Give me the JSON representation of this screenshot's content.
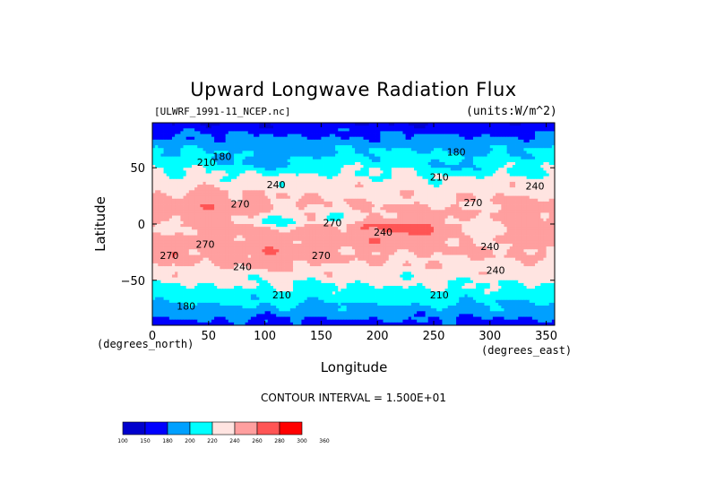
{
  "chart_data": {
    "type": "heatmap",
    "title": "Upward Longwave Radiation Flux",
    "dataset": "[ULWRF_1991-11_NCEP.nc]",
    "units": "(units:W/m^2)",
    "xlabel": "Longitude",
    "ylabel": "Latitude",
    "x_unit_label": "(degrees_east)",
    "y_unit_label": "(degrees_north)",
    "xlim": [
      0,
      357.5
    ],
    "ylim": [
      -90,
      90
    ],
    "x_ticks": [
      0,
      50,
      100,
      150,
      200,
      250,
      300,
      350
    ],
    "y_ticks": [
      50,
      0,
      -50
    ],
    "contour_interval_text": "CONTOUR INTERVAL = 1.500E+01",
    "contour_labels": [
      {
        "text": "180",
        "lon": 62,
        "lat": 60
      },
      {
        "text": "210",
        "lon": 48,
        "lat": 55
      },
      {
        "text": "240",
        "lon": 110,
        "lat": 35
      },
      {
        "text": "270",
        "lon": 78,
        "lat": 18
      },
      {
        "text": "270",
        "lon": 160,
        "lat": 1
      },
      {
        "text": "240",
        "lon": 205,
        "lat": -7
      },
      {
        "text": "180",
        "lon": 270,
        "lat": 64
      },
      {
        "text": "210",
        "lon": 255,
        "lat": 42
      },
      {
        "text": "240",
        "lon": 340,
        "lat": 34
      },
      {
        "text": "270",
        "lon": 285,
        "lat": 19
      },
      {
        "text": "270",
        "lon": 15,
        "lat": -28
      },
      {
        "text": "240",
        "lon": 80,
        "lat": -38
      },
      {
        "text": "270",
        "lon": 150,
        "lat": -28
      },
      {
        "text": "240",
        "lon": 305,
        "lat": -41
      },
      {
        "text": "210",
        "lon": 115,
        "lat": -63
      },
      {
        "text": "210",
        "lon": 255,
        "lat": -63
      },
      {
        "text": "180",
        "lon": 30,
        "lat": -73
      },
      {
        "text": "270",
        "lon": 47,
        "lat": -18
      },
      {
        "text": "240",
        "lon": 300,
        "lat": -20
      }
    ],
    "colorbar": {
      "levels": [
        "100",
        "150",
        "180",
        "200",
        "220",
        "240",
        "260",
        "280",
        "300",
        "360"
      ],
      "colors": [
        "#0000cd",
        "#0000ff",
        "#00a0ff",
        "#00ffff",
        "#ffe4e1",
        "#ff9f9f",
        "#ff5555",
        "#ff0000"
      ]
    }
  }
}
